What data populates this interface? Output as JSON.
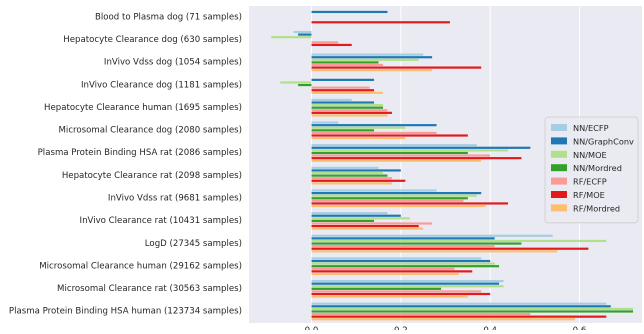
{
  "chart_data": {
    "type": "bar",
    "orientation": "horizontal",
    "grid": true,
    "legend_placement": "center-right",
    "xlim": [
      -0.14,
      0.74
    ],
    "x_ticks": [
      0.0,
      0.2,
      0.4,
      0.6
    ],
    "x_tick_labels": [
      "0.0",
      "0.2",
      "0.4",
      "0.6"
    ],
    "categories": [
      "Blood to Plasma dog (71 samples)",
      "Hepatocyte Clearance dog (630 samples)",
      "InVivo Vdss dog (1054 samples)",
      "InVivo Clearance dog (1181 samples)",
      "Hepatocyte Clearance human (1695 samples)",
      "Microsomal Clearance dog (2080 samples)",
      "Plasma Protein Binding HSA rat (2086 samples)",
      "Hepatocyte Clearance rat (2098 samples)",
      "InVivo Vdss rat (9681 samples)",
      "InVivo Clearance rat (10431 samples)",
      "LogD (27345 samples)",
      "Microsomal Clearance human (29162 samples)",
      "Microsomal Clearance rat (30563 samples)",
      "Plasma Protein Binding HSA human (123734 samples)"
    ],
    "series": [
      {
        "name": "NN/ECFP",
        "color": "#a6cee3",
        "values": [
          0.0,
          -0.04,
          0.25,
          0.0,
          0.09,
          0.06,
          0.37,
          0.15,
          0.28,
          0.17,
          0.54,
          0.38,
          0.43,
          0.66
        ]
      },
      {
        "name": "NN/GraphConv",
        "color": "#1f78b4",
        "values": [
          0.17,
          -0.03,
          0.27,
          0.14,
          0.14,
          0.28,
          0.49,
          0.2,
          0.38,
          0.2,
          0.41,
          0.4,
          0.42,
          0.67
        ]
      },
      {
        "name": "NN/MOE",
        "color": "#b2df8a",
        "values": [
          0.0,
          -0.09,
          0.24,
          -0.07,
          0.16,
          0.21,
          0.44,
          0.16,
          0.37,
          0.22,
          0.66,
          0.41,
          0.43,
          0.72
        ]
      },
      {
        "name": "NN/Mordred",
        "color": "#33a02c",
        "values": [
          0.0,
          0.0,
          0.15,
          -0.03,
          0.16,
          0.14,
          0.35,
          0.17,
          0.35,
          0.14,
          0.47,
          0.42,
          0.29,
          0.72
        ]
      },
      {
        "name": "RF/ECFP",
        "color": "#fb9a99",
        "values": [
          0.0,
          0.06,
          0.16,
          0.13,
          0.17,
          0.28,
          0.4,
          0.18,
          0.34,
          0.27,
          0.41,
          0.32,
          0.38,
          0.49
        ]
      },
      {
        "name": "RF/MOE",
        "color": "#e31a1c",
        "values": [
          0.31,
          0.09,
          0.38,
          0.14,
          0.18,
          0.35,
          0.47,
          0.21,
          0.44,
          0.24,
          0.62,
          0.36,
          0.4,
          0.66
        ]
      },
      {
        "name": "RF/Mordred",
        "color": "#fdbf6f",
        "values": [
          0.0,
          0.0,
          0.27,
          0.16,
          0.17,
          0.21,
          0.38,
          0.18,
          0.39,
          0.25,
          0.55,
          0.33,
          0.35,
          0.59
        ]
      }
    ]
  }
}
